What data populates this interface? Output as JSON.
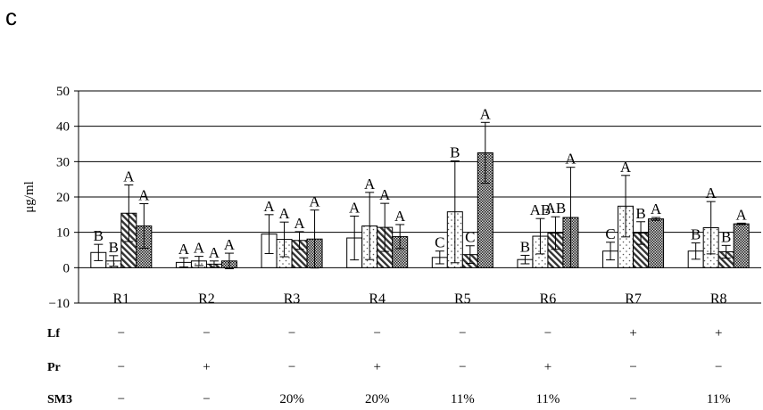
{
  "panel_label": "c",
  "chart_data": {
    "type": "bar",
    "ylabel": "μg/ml",
    "ylim": [
      -10,
      50
    ],
    "yticks": [
      -10,
      0,
      10,
      20,
      30,
      40,
      50
    ],
    "grid": true,
    "categories": [
      "R1",
      "R2",
      "R3",
      "R4",
      "R5",
      "R6",
      "R7",
      "R8"
    ],
    "series": [
      {
        "pattern": "white",
        "values": [
          4.3,
          1.5,
          9.5,
          8.4,
          2.9,
          2.3,
          4.7,
          4.7
        ],
        "errors": [
          2.3,
          1.3,
          5.5,
          6.2,
          1.8,
          1.2,
          2.5,
          2.3
        ],
        "letters": [
          "B",
          "A",
          "A",
          "A",
          "C",
          "B",
          "C",
          "B"
        ]
      },
      {
        "pattern": "dotted",
        "values": [
          1.9,
          1.9,
          8.0,
          11.8,
          15.8,
          8.9,
          17.4,
          11.3
        ],
        "errors": [
          1.5,
          1.3,
          4.9,
          9.5,
          14.4,
          5.0,
          8.7,
          7.4
        ],
        "letters": [
          "B",
          "A",
          "A",
          "A",
          "B",
          "AB",
          "A",
          "A"
        ]
      },
      {
        "pattern": "hatched",
        "values": [
          15.4,
          1.0,
          7.7,
          11.4,
          3.7,
          9.8,
          9.8,
          4.5
        ],
        "errors": [
          8.0,
          0.9,
          2.5,
          6.8,
          2.5,
          4.6,
          3.2,
          1.8
        ],
        "letters": [
          "A",
          "A",
          "A",
          "A",
          "C",
          "AB",
          "B",
          "B"
        ]
      },
      {
        "pattern": "checkered",
        "values": [
          11.8,
          1.9,
          8.1,
          8.8,
          32.5,
          14.2,
          13.8,
          12.4
        ],
        "errors": [
          6.3,
          2.2,
          8.2,
          3.4,
          8.6,
          14.2,
          0.4,
          0.2
        ],
        "letters": [
          "A",
          "A",
          "A",
          "A",
          "A",
          "A",
          "A",
          "A"
        ]
      }
    ],
    "conditions": [
      {
        "name": "Lf",
        "values": [
          "−",
          "−",
          "−",
          "−",
          "−",
          "−",
          "+",
          "+"
        ]
      },
      {
        "name": "Pr",
        "values": [
          "−",
          "+",
          "−",
          "+",
          "−",
          "+",
          "−",
          "−"
        ]
      },
      {
        "name": "SM3",
        "values": [
          "−",
          "−",
          "20%",
          "20%",
          "11%",
          "11%",
          "−",
          "11%"
        ]
      }
    ]
  }
}
